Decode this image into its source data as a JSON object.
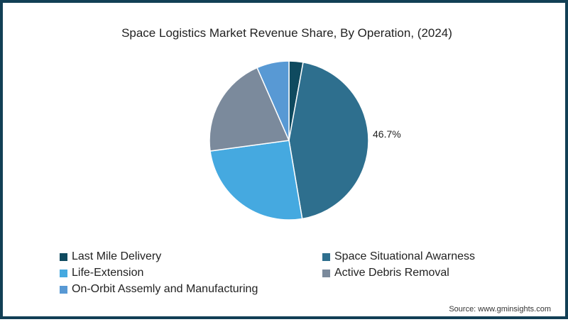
{
  "chart_data": {
    "type": "pie",
    "title": "Space Logistics Market Revenue Share, By Operation, (2024)",
    "slices": [
      {
        "label": "Last Mile Delivery",
        "value": 3.0,
        "color": "#0f4a5f"
      },
      {
        "label": "Space Situational Awarness",
        "value": 46.7,
        "color": "#2e6f8e",
        "data_label": "46.7%"
      },
      {
        "label": "Life-Extension",
        "value": 26.8,
        "color": "#45a9e0"
      },
      {
        "label": "Active Debris Removal",
        "value": 21.6,
        "color": "#7b8a9c"
      },
      {
        "label": "On-Orbit Assemly and Manufacturing",
        "value": 6.9,
        "color": "#5899d4"
      }
    ],
    "annotations": [
      "46.7%"
    ],
    "legend_position": "bottom",
    "source": "Source: www.gminsights.com"
  },
  "title": "Space Logistics Market Revenue Share, By Operation, (2024)",
  "data_label": "46.7%",
  "legend": [
    {
      "label": "Last Mile Delivery",
      "color": "#0f4a5f"
    },
    {
      "label": "Space Situational Awarness",
      "color": "#2e6f8e"
    },
    {
      "label": "Life-Extension",
      "color": "#45a9e0"
    },
    {
      "label": "Active Debris Removal",
      "color": "#7b8a9c"
    },
    {
      "label": "On-Orbit Assemly and Manufacturing",
      "color": "#5899d4"
    }
  ],
  "source": "Source: www.gminsights.com"
}
